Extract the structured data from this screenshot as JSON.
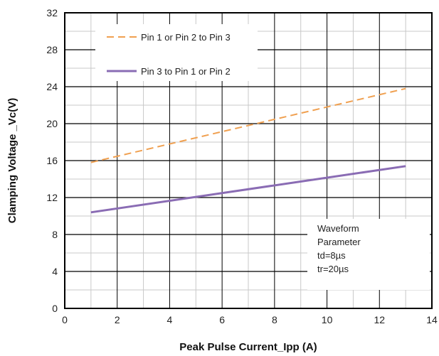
{
  "chart_data": {
    "type": "line",
    "title": "",
    "xlabel": "Peak Pulse Current_Ipp (A)",
    "ylabel": "Clamping Voltage _Vc(V)",
    "xlim": [
      0,
      14
    ],
    "ylim": [
      0,
      32
    ],
    "xticks": [
      0,
      2,
      4,
      6,
      8,
      10,
      12,
      14
    ],
    "yticks": [
      0,
      4,
      8,
      12,
      16,
      20,
      24,
      28,
      32
    ],
    "grid": true,
    "legend_position": "top-left",
    "series": [
      {
        "name": "Pin 1 or Pin 2 to Pin 3",
        "style": "dashed",
        "color": "#f0a050",
        "x": [
          1,
          13
        ],
        "y": [
          15.8,
          23.8
        ]
      },
      {
        "name": "Pin 3 to Pin 1 or Pin 2",
        "style": "solid",
        "color": "#8a6cb4",
        "x": [
          1,
          13
        ],
        "y": [
          10.4,
          15.4
        ]
      }
    ],
    "annotation": [
      "Waveform",
      "Parameter",
      "td=8µs",
      "tr=20µs"
    ]
  }
}
